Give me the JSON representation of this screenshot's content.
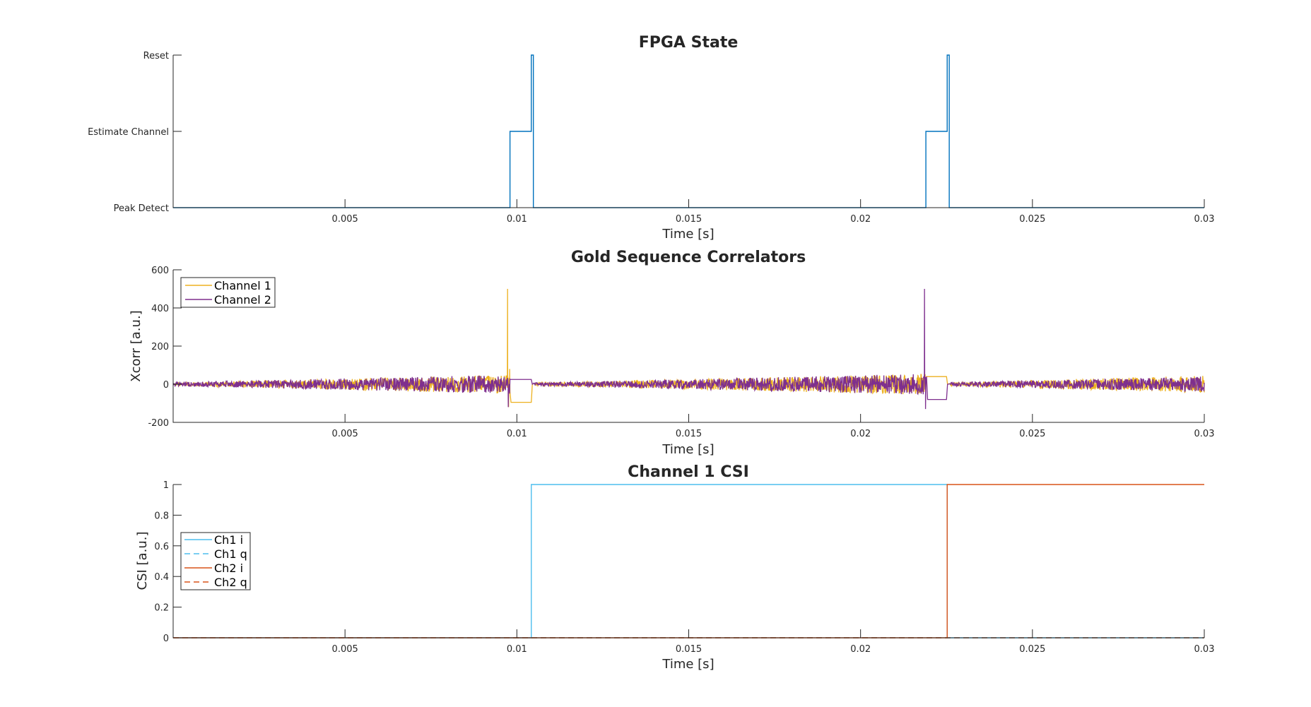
{
  "colors": {
    "state": "#0072BD",
    "channel1": "#EDB120",
    "channel2": "#7E2F8E",
    "ch1": "#4DBEEE",
    "ch2": "#D95319",
    "axis": "#262626"
  },
  "chart_data": [
    {
      "type": "line",
      "title": "FPGA State",
      "xlabel": "Time [s]",
      "ylabel": "",
      "xlim": [
        0,
        0.03
      ],
      "ylim": [
        0,
        2
      ],
      "xticks": [
        0.005,
        0.01,
        0.015,
        0.02,
        0.025,
        0.03
      ],
      "xtick_labels": [
        "0.005",
        "0.01",
        "0.015",
        "0.02",
        "0.025",
        "0.03"
      ],
      "yticks": [
        0,
        1,
        2
      ],
      "ytick_labels": [
        "Peak Detect",
        "Estimate Channel",
        "Reset"
      ],
      "grid": false,
      "series": [
        {
          "color": "#0072BD",
          "x": [
            0,
            0.0098,
            0.0098,
            0.01042,
            0.01042,
            0.01048,
            0.01048,
            0.0219,
            0.0219,
            0.02252,
            0.02252,
            0.02258,
            0.02258,
            0.03
          ],
          "y": [
            0,
            0,
            1,
            1,
            2,
            2,
            0,
            0,
            1,
            1,
            2,
            2,
            0,
            0
          ]
        }
      ]
    },
    {
      "type": "line",
      "title": "Gold Sequence Correlators",
      "xlabel": "Time [s]",
      "ylabel": "Xcorr [a.u.]",
      "xlim": [
        0,
        0.03
      ],
      "ylim": [
        -200,
        600
      ],
      "xticks": [
        0.005,
        0.01,
        0.015,
        0.02,
        0.025,
        0.03
      ],
      "xtick_labels": [
        "0.005",
        "0.01",
        "0.015",
        "0.02",
        "0.025",
        "0.03"
      ],
      "yticks": [
        -200,
        0,
        200,
        400,
        600
      ],
      "ytick_labels": [
        "-200",
        "0",
        "200",
        "400",
        "600"
      ],
      "grid": false,
      "legend": {
        "location": "top-left",
        "entries": [
          "Channel 1",
          "Channel 2"
        ]
      },
      "series": [
        {
          "name": "Channel 1",
          "color": "#EDB120",
          "noise_segments": [
            {
              "x": [
                0,
                0.0098
              ],
              "amp_start": 8,
              "amp_end": 50
            },
            {
              "x": [
                0.0105,
                0.0219
              ],
              "amp_start": 8,
              "amp_end": 55
            },
            {
              "x": [
                0.0226,
                0.03
              ],
              "amp_start": 10,
              "amp_end": 45
            }
          ],
          "x": [
            0.0097,
            0.00973,
            0.00976,
            0.00979,
            0.00983,
            0.00986,
            0.01042,
            0.01045,
            0.02186,
            0.02189,
            0.02192,
            0.0225,
            0.02253
          ],
          "y": [
            10,
            500,
            -120,
            80,
            -95,
            -95,
            -95,
            0,
            10,
            -40,
            40,
            40,
            0
          ]
        },
        {
          "name": "Channel 2",
          "color": "#7E2F8E",
          "noise_segments": [
            {
              "x": [
                0,
                0.0098
              ],
              "amp_start": 10,
              "amp_end": 50
            },
            {
              "x": [
                0.0105,
                0.0219
              ],
              "amp_start": 8,
              "amp_end": 55
            },
            {
              "x": [
                0.0226,
                0.03
              ],
              "amp_start": 10,
              "amp_end": 40
            }
          ],
          "x": [
            0.0097,
            0.00975,
            0.0098,
            0.00983,
            0.01042,
            0.01045,
            0.02183,
            0.02186,
            0.02189,
            0.02192,
            0.02195,
            0.0225,
            0.02253
          ],
          "y": [
            10,
            -120,
            25,
            25,
            25,
            0,
            20,
            500,
            -130,
            40,
            -80,
            -80,
            0
          ]
        }
      ]
    },
    {
      "type": "line",
      "title": "Channel 1 CSI",
      "xlabel": "Time [s]",
      "ylabel": "CSI [a.u.]",
      "xlim": [
        0,
        0.03
      ],
      "ylim": [
        0,
        1
      ],
      "xticks": [
        0.005,
        0.01,
        0.015,
        0.02,
        0.025,
        0.03
      ],
      "xtick_labels": [
        "0.005",
        "0.01",
        "0.015",
        "0.02",
        "0.025",
        "0.03"
      ],
      "yticks": [
        0,
        0.2,
        0.4,
        0.6,
        0.8,
        1
      ],
      "ytick_labels": [
        "0",
        "0.2",
        "0.4",
        "0.6",
        "0.8",
        "1"
      ],
      "grid": false,
      "legend": {
        "location": "middle-left",
        "entries": [
          "Ch1 i",
          "Ch1 q",
          "Ch2 i",
          "Ch2 q"
        ]
      },
      "series": [
        {
          "name": "Ch1 i",
          "color": "#4DBEEE",
          "dash": false,
          "x": [
            0,
            0.01042,
            0.01042,
            0.02252,
            0.02252,
            0.03
          ],
          "y": [
            0,
            0,
            1,
            1,
            0,
            0
          ]
        },
        {
          "name": "Ch1 q",
          "color": "#4DBEEE",
          "dash": true,
          "x": [
            0,
            0.03
          ],
          "y": [
            0,
            0
          ]
        },
        {
          "name": "Ch2 i",
          "color": "#D95319",
          "dash": false,
          "x": [
            0,
            0.02252,
            0.02252,
            0.03
          ],
          "y": [
            0,
            0,
            1,
            1
          ]
        },
        {
          "name": "Ch2 q",
          "color": "#D95319",
          "dash": true,
          "x": [
            0,
            0.03
          ],
          "y": [
            0,
            0
          ]
        }
      ]
    }
  ]
}
